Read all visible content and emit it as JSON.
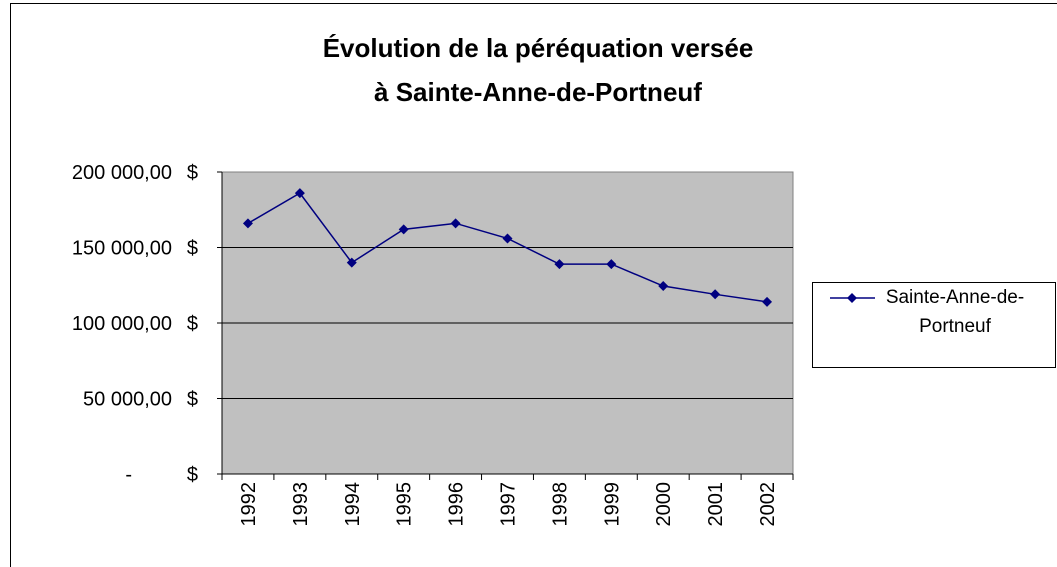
{
  "chart_data": {
    "type": "line",
    "title": [
      "Évolution de la péréquation versée",
      "à Sainte-Anne-de-Portneuf"
    ],
    "categories": [
      "1992",
      "1993",
      "1994",
      "1995",
      "1996",
      "1997",
      "1998",
      "1999",
      "2000",
      "2001",
      "2002"
    ],
    "series": [
      {
        "name": "Sainte-Anne-de-Portneuf",
        "color": "#000080",
        "values": [
          166000,
          186000,
          140000,
          162000,
          166000,
          156000,
          139000,
          139000,
          124500,
          119000,
          114000
        ]
      }
    ],
    "ylim": [
      0,
      200000
    ],
    "yticks": [
      {
        "value": 0,
        "label": "- $"
      },
      {
        "value": 50000,
        "label": "50 000,00 $"
      },
      {
        "value": 100000,
        "label": "100 000,00 $"
      },
      {
        "value": 150000,
        "label": "150 000,00 $"
      },
      {
        "value": 200000,
        "label": "200 000,00 $"
      }
    ],
    "grid": true,
    "legend": "right",
    "plot_background": "#c0c0c0"
  }
}
